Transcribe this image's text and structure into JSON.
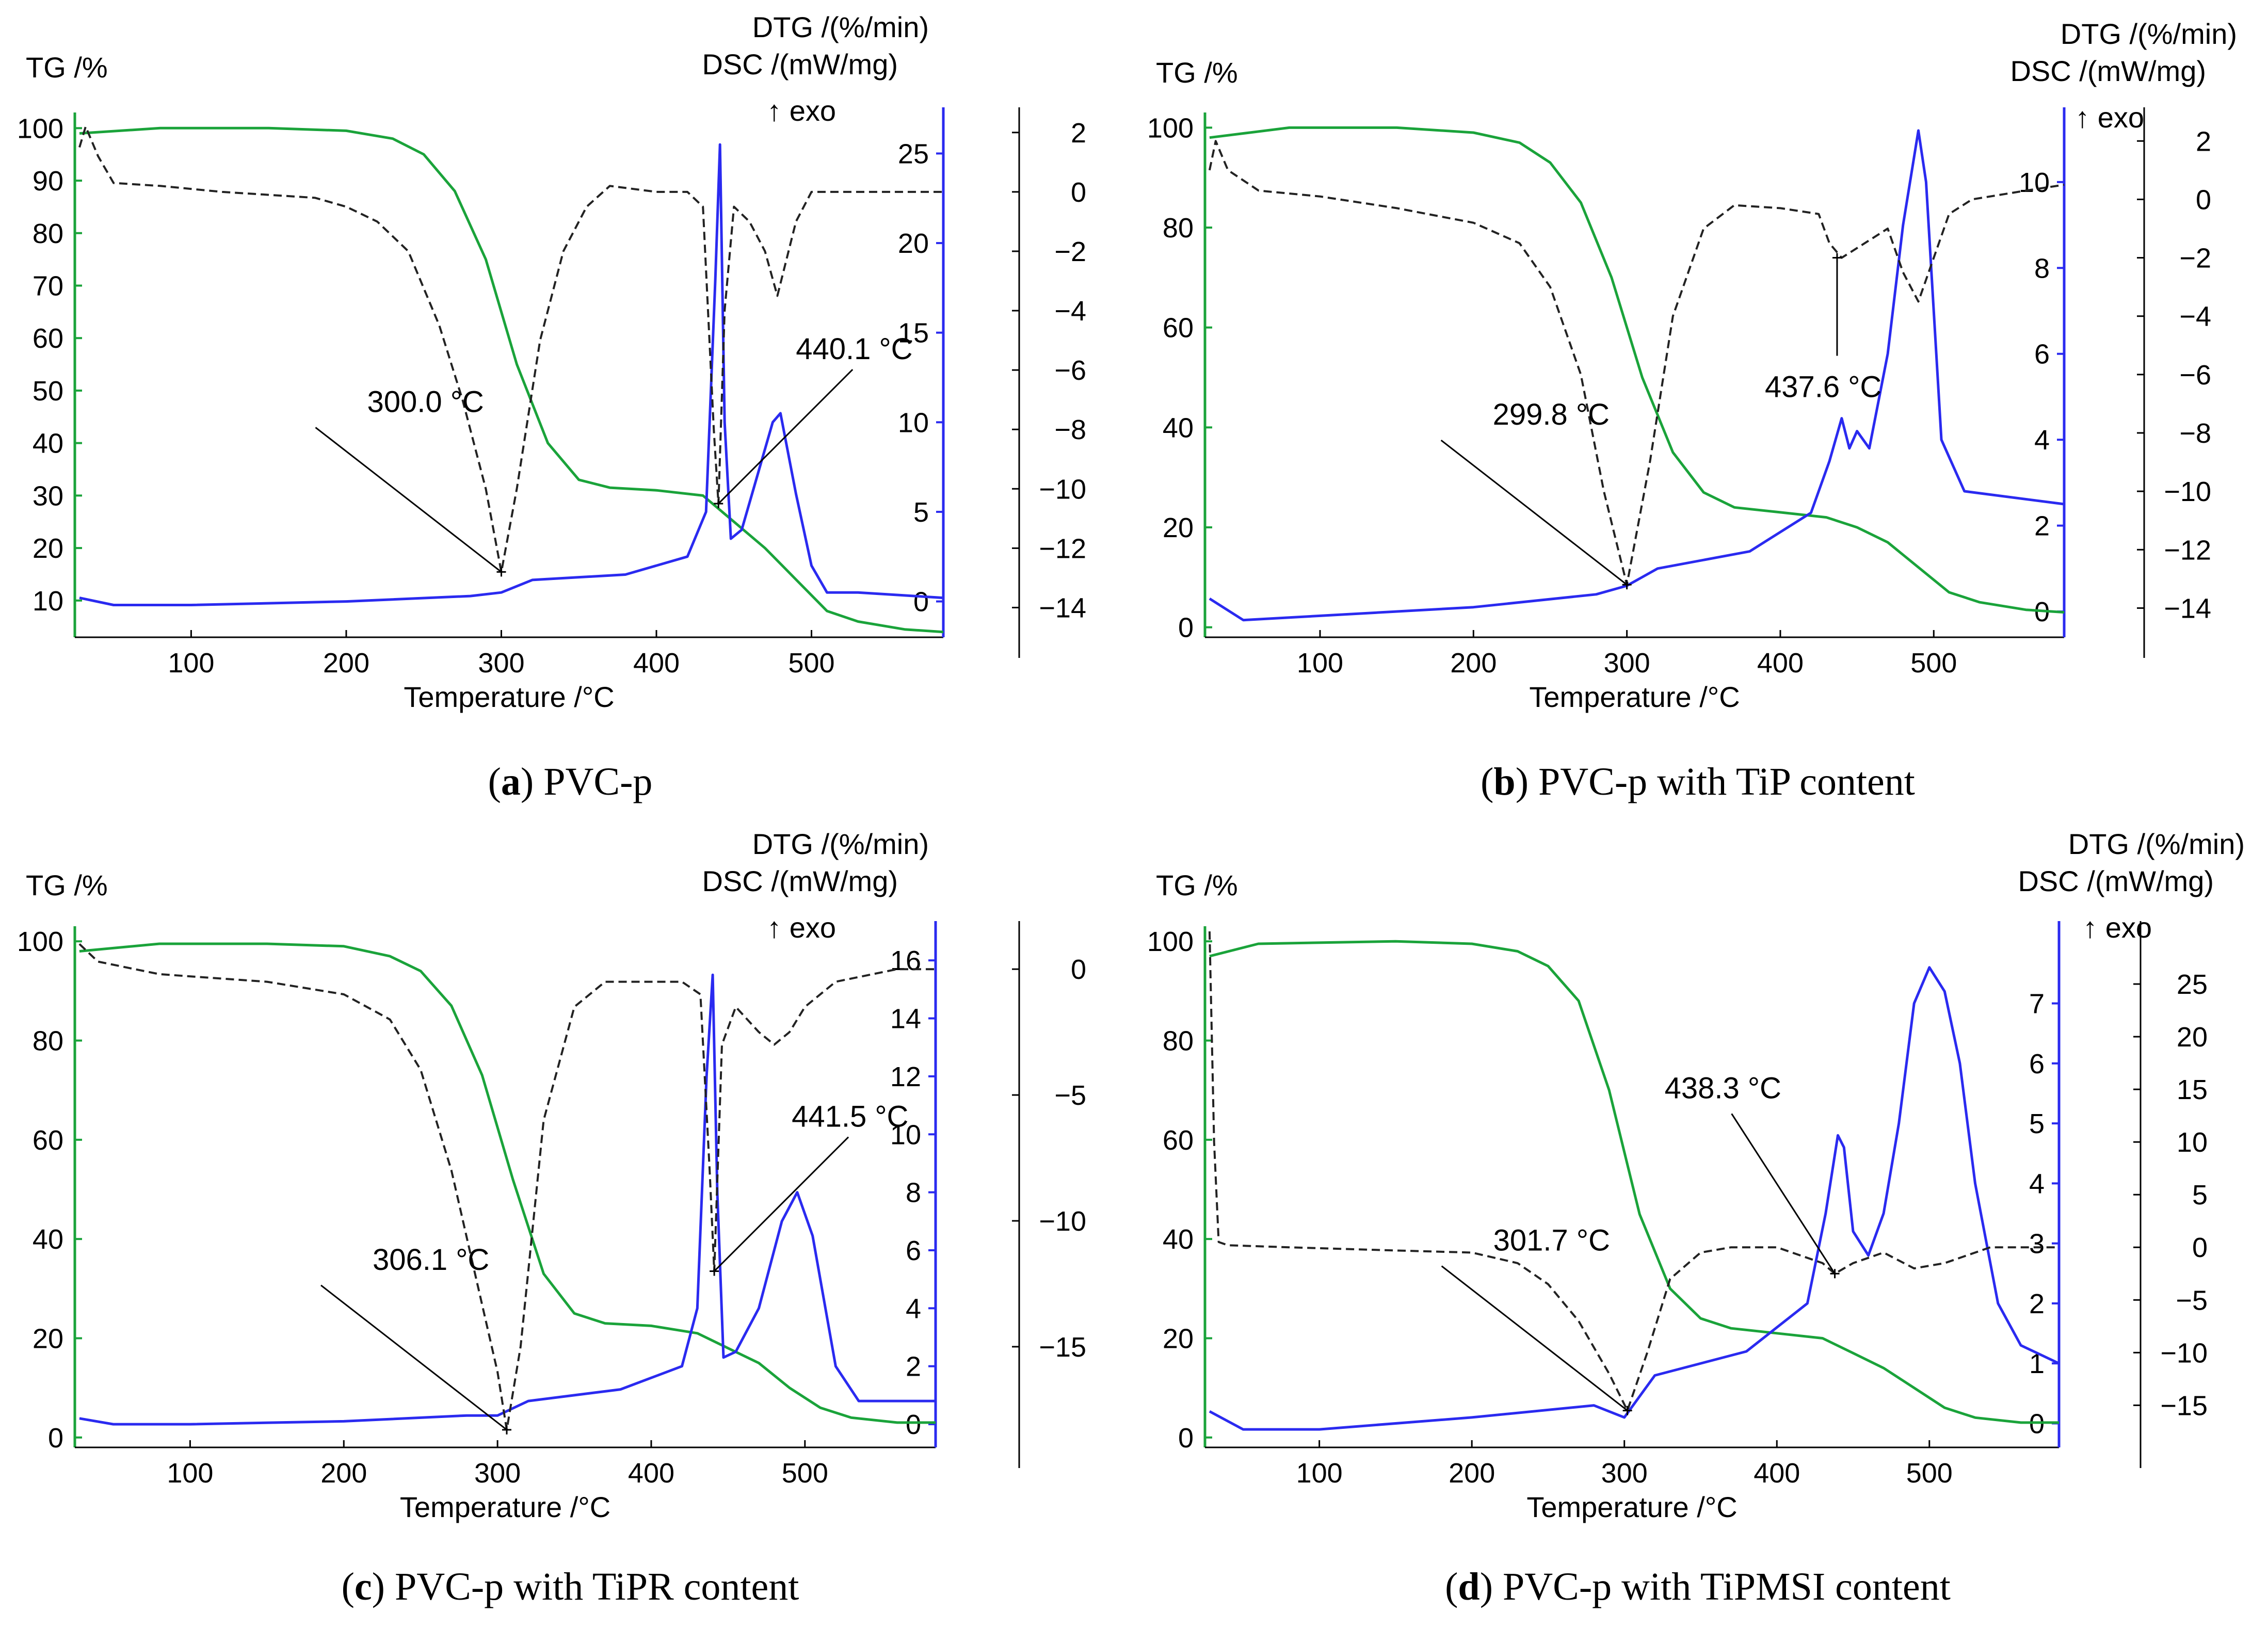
{
  "colors": {
    "tg": "#1aa33a",
    "dtg": "#222222",
    "dsc": "#2a2af0",
    "axis": "#000000"
  },
  "chart_data": [
    {
      "type": "line",
      "panel": "a",
      "caption_letter": "a",
      "caption_text": "PVC-p",
      "caption_open": "(",
      "caption_close": ")",
      "xlabel": "Temperature /°C",
      "xlim": [
        25,
        585
      ],
      "xticks": [
        "100",
        "200",
        "300",
        "400",
        "500"
      ],
      "tg_label": "TG /%",
      "tg_lim": [
        3,
        102
      ],
      "tg_ticks": [
        "10",
        "20",
        "30",
        "40",
        "50",
        "60",
        "70",
        "80",
        "90",
        "100"
      ],
      "dsc_label": "DSC /(mW/mg)",
      "dsc_lim": [
        -2,
        27
      ],
      "dsc_ticks": [
        "0",
        "5",
        "10",
        "15",
        "20",
        "25"
      ],
      "dtg_label": "DTG /(%/min)",
      "dtg_lim": [
        -15,
        2.5
      ],
      "dtg_ticks": [
        "2",
        "0",
        "−2",
        "−4",
        "−6",
        "−8",
        "−10",
        "−12",
        "−14"
      ],
      "exo_label": "↑ exo",
      "annotations": [
        {
          "text": "300.0 °C",
          "x": 300,
          "dtg": -12.8
        },
        {
          "text": "440.1 °C",
          "x": 440,
          "dtg": -10.5
        }
      ],
      "series": [
        {
          "name": "TG",
          "axis": "tg",
          "x": [
            28,
            80,
            150,
            200,
            230,
            250,
            270,
            290,
            310,
            330,
            350,
            370,
            400,
            430,
            450,
            470,
            490,
            510,
            530,
            560,
            585
          ],
          "values": [
            99,
            100,
            100,
            99.5,
            98,
            95,
            88,
            75,
            55,
            40,
            33,
            31.5,
            31,
            30,
            25,
            20,
            14,
            8,
            6,
            4.5,
            4
          ]
        },
        {
          "name": "DSC",
          "axis": "dsc",
          "x": [
            28,
            50,
            100,
            200,
            280,
            300,
            320,
            380,
            420,
            432,
            438,
            441,
            444,
            448,
            455,
            465,
            475,
            480,
            490,
            500,
            510,
            530,
            585
          ],
          "values": [
            0.2,
            -0.2,
            -0.2,
            0,
            0.3,
            0.5,
            1.2,
            1.5,
            2.5,
            5,
            18,
            25.5,
            10,
            3.5,
            4,
            7,
            10,
            10.5,
            6,
            2,
            0.5,
            0.5,
            0.2
          ]
        },
        {
          "name": "DTG",
          "axis": "dtg",
          "x": [
            28,
            32,
            40,
            50,
            80,
            120,
            150,
            180,
            200,
            220,
            240,
            260,
            275,
            290,
            300,
            310,
            325,
            340,
            355,
            370,
            400,
            420,
            430,
            437,
            440,
            444,
            450,
            460,
            470,
            478,
            490,
            500,
            520,
            560,
            585
          ],
          "values": [
            1.5,
            2.2,
            1.2,
            0.3,
            0.2,
            0,
            -0.1,
            -0.2,
            -0.5,
            -1,
            -2,
            -4.5,
            -7,
            -10,
            -12.8,
            -10,
            -5,
            -2,
            -0.5,
            0.2,
            0,
            0,
            -0.5,
            -8,
            -10.5,
            -4,
            -0.5,
            -1,
            -2,
            -3.5,
            -1,
            0,
            0,
            0,
            0
          ]
        }
      ]
    },
    {
      "type": "line",
      "panel": "b",
      "caption_letter": "b",
      "caption_text": "PVC-p with TiP content",
      "caption_open": "(",
      "caption_close": ")",
      "xlabel": "Temperature /°C",
      "xlim": [
        25,
        585
      ],
      "xticks": [
        "100",
        "200",
        "300",
        "400",
        "500"
      ],
      "tg_label": "TG /%",
      "tg_lim": [
        -2,
        102
      ],
      "tg_ticks": [
        "0",
        "20",
        "40",
        "60",
        "80",
        "100"
      ],
      "dsc_label": "DSC /(mW/mg)",
      "dsc_lim": [
        -0.6,
        11.5
      ],
      "dsc_ticks": [
        "0",
        "2",
        "4",
        "6",
        "8",
        "10"
      ],
      "dtg_label": "DTG /(%/min)",
      "dtg_lim": [
        -15,
        2.8
      ],
      "dtg_ticks": [
        "2",
        "0",
        "−2",
        "−4",
        "−6",
        "−8",
        "−10",
        "−12",
        "−14"
      ],
      "exo_label": "↑ exo",
      "annotations": [
        {
          "text": "299.8 °C",
          "x": 300,
          "dtg": -13.2
        },
        {
          "text": "437.6 °C",
          "x": 437,
          "dtg": -2
        }
      ],
      "series": [
        {
          "name": "TG",
          "axis": "tg",
          "x": [
            28,
            80,
            150,
            200,
            230,
            250,
            270,
            290,
            310,
            330,
            350,
            370,
            400,
            430,
            450,
            470,
            490,
            510,
            530,
            560,
            585
          ],
          "values": [
            98,
            100,
            100,
            99,
            97,
            93,
            85,
            70,
            50,
            35,
            27,
            24,
            23,
            22,
            20,
            17,
            12,
            7,
            5,
            3.5,
            3
          ]
        },
        {
          "name": "DSC",
          "axis": "dsc",
          "x": [
            28,
            50,
            100,
            200,
            280,
            300,
            320,
            380,
            420,
            432,
            440,
            445,
            450,
            458,
            470,
            480,
            490,
            495,
            505,
            520,
            585
          ],
          "values": [
            0.3,
            -0.2,
            -0.1,
            0.1,
            0.4,
            0.6,
            1,
            1.4,
            2.3,
            3.5,
            4.5,
            3.8,
            4.2,
            3.8,
            6,
            9,
            11.2,
            10,
            4,
            2.8,
            2.5
          ]
        },
        {
          "name": "DTG",
          "axis": "dtg",
          "x": [
            28,
            32,
            40,
            60,
            100,
            150,
            200,
            230,
            250,
            270,
            285,
            300,
            315,
            330,
            350,
            370,
            400,
            425,
            432,
            440,
            455,
            470,
            480,
            490,
            500,
            510,
            525,
            560,
            585
          ],
          "values": [
            1,
            2,
            1,
            0.3,
            0.1,
            -0.3,
            -0.8,
            -1.5,
            -3,
            -6,
            -10,
            -13.2,
            -9,
            -4,
            -1,
            -0.2,
            -0.3,
            -0.5,
            -1.5,
            -2,
            -1.5,
            -1,
            -2.5,
            -3.5,
            -2,
            -0.5,
            0,
            0.3,
            0.5
          ]
        }
      ]
    },
    {
      "type": "line",
      "panel": "c",
      "caption_letter": "c",
      "caption_text": "PVC-p with TiPR content",
      "caption_open": "(",
      "caption_close": ")",
      "xlabel": "Temperature /°C",
      "xlim": [
        25,
        585
      ],
      "xticks": [
        "100",
        "200",
        "300",
        "400",
        "500"
      ],
      "tg_label": "TG /%",
      "tg_lim": [
        -2,
        102
      ],
      "tg_ticks": [
        "0",
        "20",
        "40",
        "60",
        "80",
        "100"
      ],
      "dsc_label": "DSC /(mW/mg)",
      "dsc_lim": [
        -0.8,
        17
      ],
      "dsc_ticks": [
        "0",
        "2",
        "4",
        "6",
        "8",
        "10",
        "12",
        "14",
        "16"
      ],
      "dtg_label": "DTG /(%/min)",
      "dtg_lim": [
        -19,
        1.5
      ],
      "dtg_ticks": [
        "0",
        "−5",
        "−10",
        "−15"
      ],
      "exo_label": "↑ exo",
      "annotations": [
        {
          "text": "306.1 °C",
          "x": 306,
          "dtg": -18.3
        },
        {
          "text": "441.5 °C",
          "x": 441,
          "dtg": -12
        }
      ],
      "series": [
        {
          "name": "TG",
          "axis": "tg",
          "x": [
            28,
            80,
            150,
            200,
            230,
            250,
            270,
            290,
            310,
            330,
            350,
            370,
            400,
            430,
            450,
            470,
            490,
            510,
            530,
            560,
            585
          ],
          "values": [
            98,
            99.5,
            99.5,
            99,
            97,
            94,
            87,
            73,
            52,
            33,
            25,
            23,
            22.5,
            21,
            18,
            15,
            10,
            6,
            4,
            3,
            3
          ]
        },
        {
          "name": "DSC",
          "axis": "dsc",
          "x": [
            28,
            50,
            100,
            200,
            280,
            300,
            320,
            380,
            420,
            430,
            436,
            440,
            443,
            447,
            455,
            470,
            485,
            495,
            505,
            520,
            535,
            585
          ],
          "values": [
            0.2,
            0,
            0,
            0.1,
            0.3,
            0.3,
            0.8,
            1.2,
            2,
            4,
            12,
            15.5,
            8,
            2.3,
            2.5,
            4,
            7,
            8,
            6.5,
            2,
            0.8,
            0.8
          ]
        },
        {
          "name": "DTG",
          "axis": "dtg",
          "x": [
            28,
            40,
            80,
            150,
            200,
            230,
            250,
            270,
            285,
            300,
            306,
            315,
            330,
            350,
            370,
            400,
            420,
            432,
            438,
            441,
            446,
            455,
            470,
            480,
            490,
            500,
            520,
            560,
            585
          ],
          "values": [
            1,
            0.3,
            -0.2,
            -0.5,
            -1,
            -2,
            -4,
            -8,
            -12,
            -16,
            -18.3,
            -15,
            -6,
            -1.5,
            -0.5,
            -0.5,
            -0.5,
            -1,
            -8,
            -12,
            -3,
            -1.5,
            -2.5,
            -3,
            -2.5,
            -1.5,
            -0.5,
            0,
            0
          ]
        }
      ]
    },
    {
      "type": "line",
      "panel": "d",
      "caption_letter": "d",
      "caption_text": "PVC-p with TiPMSI content",
      "caption_open": "(",
      "caption_close": ")",
      "xlabel": "Temperature /°C",
      "xlim": [
        25,
        585
      ],
      "xticks": [
        "100",
        "200",
        "300",
        "400",
        "500"
      ],
      "tg_label": "TG /%",
      "tg_lim": [
        -2,
        102
      ],
      "tg_ticks": [
        "0",
        "20",
        "40",
        "60",
        "80",
        "100"
      ],
      "dsc_label": "DSC /(mW/mg)",
      "dsc_lim": [
        -0.4,
        8.2
      ],
      "dsc_ticks": [
        "0",
        "1",
        "2",
        "3",
        "4",
        "5",
        "6",
        "7"
      ],
      "dtg_label": "DTG /(%/min)",
      "dtg_lim": [
        -19,
        30
      ],
      "dtg_ticks": [
        "25",
        "20",
        "15",
        "10",
        "5",
        "0",
        "−5",
        "−10",
        "−15"
      ],
      "exo_label": "↑ exo",
      "annotations": [
        {
          "text": "301.7 °C",
          "x": 302,
          "dtg": -15.5
        },
        {
          "text": "438.3 °C",
          "x": 438,
          "dtg": -2.5
        }
      ],
      "series": [
        {
          "name": "TG",
          "axis": "tg",
          "x": [
            28,
            60,
            150,
            200,
            230,
            250,
            270,
            290,
            310,
            330,
            350,
            370,
            400,
            430,
            450,
            470,
            490,
            510,
            530,
            560,
            585
          ],
          "values": [
            97,
            99.5,
            100,
            99.5,
            98,
            95,
            88,
            70,
            45,
            30,
            24,
            22,
            21,
            20,
            17,
            14,
            10,
            6,
            4,
            3,
            3
          ]
        },
        {
          "name": "DSC",
          "axis": "dsc",
          "x": [
            28,
            50,
            100,
            200,
            280,
            300,
            320,
            380,
            420,
            432,
            440,
            444,
            450,
            460,
            470,
            480,
            490,
            500,
            510,
            520,
            530,
            545,
            560,
            585
          ],
          "values": [
            0.2,
            -0.1,
            -0.1,
            0.1,
            0.3,
            0.1,
            0.8,
            1.2,
            2,
            3.5,
            4.8,
            4.6,
            3.2,
            2.8,
            3.5,
            5,
            7,
            7.6,
            7.2,
            6,
            4,
            2,
            1.3,
            1
          ]
        },
        {
          "name": "DTG",
          "axis": "dtg",
          "x": [
            28,
            31,
            34,
            40,
            80,
            150,
            200,
            230,
            250,
            270,
            290,
            302,
            315,
            330,
            350,
            370,
            400,
            430,
            438,
            450,
            470,
            490,
            510,
            540,
            560,
            585
          ],
          "values": [
            30,
            10,
            0.5,
            0.2,
            0,
            -0.3,
            -0.5,
            -1.5,
            -3.5,
            -7,
            -12,
            -15.5,
            -10,
            -3,
            -0.5,
            0,
            0,
            -1.5,
            -2.5,
            -1.5,
            -0.5,
            -2,
            -1.5,
            0,
            0,
            0
          ]
        }
      ]
    }
  ]
}
